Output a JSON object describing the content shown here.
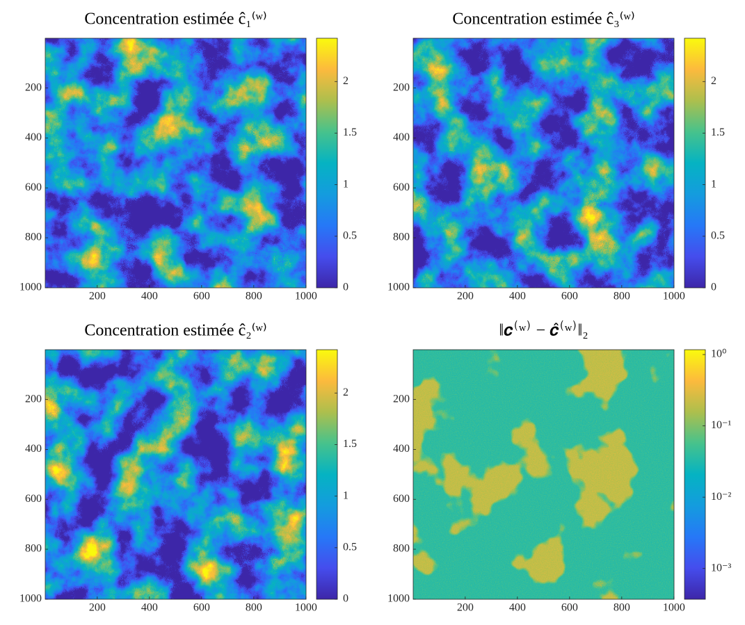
{
  "chart_data": [
    {
      "type": "image",
      "title": "Concentration estimée ĉ₁⁽ʷ⁾",
      "xlim": [
        0.5,
        1000.5
      ],
      "ylim": [
        0.5,
        1000.5
      ],
      "ydir": "reverse",
      "xticks": [
        200,
        400,
        600,
        800,
        1000
      ],
      "yticks": [
        200,
        400,
        600,
        800,
        1000
      ],
      "colormap": "parula",
      "colorbar_scale": "linear",
      "clim": [
        0,
        2.42
      ],
      "cticks": [
        0,
        0.5,
        1,
        1.5,
        2
      ]
    },
    {
      "type": "image",
      "title": "Concentration estimée ĉ₃⁽ʷ⁾",
      "xlim": [
        0.5,
        1000.5
      ],
      "ylim": [
        0.5,
        1000.5
      ],
      "ydir": "reverse",
      "xticks": [
        200,
        400,
        600,
        800,
        1000
      ],
      "yticks": [
        200,
        400,
        600,
        800,
        1000
      ],
      "colormap": "parula",
      "colorbar_scale": "linear",
      "clim": [
        0,
        2.42
      ],
      "cticks": [
        0,
        0.5,
        1,
        1.5,
        2
      ]
    },
    {
      "type": "image",
      "title": "Concentration estimée ĉ₂⁽ʷ⁾",
      "xlim": [
        0.5,
        1000.5
      ],
      "ylim": [
        0.5,
        1000.5
      ],
      "ydir": "reverse",
      "xticks": [
        200,
        400,
        600,
        800,
        1000
      ],
      "yticks": [
        200,
        400,
        600,
        800,
        1000
      ],
      "colormap": "parula",
      "colorbar_scale": "linear",
      "clim": [
        0,
        2.42
      ],
      "cticks": [
        0,
        0.5,
        1,
        1.5,
        2
      ]
    },
    {
      "type": "image",
      "title": "‖𝒄⁽ʷ⁾ − 𝒄̂⁽ʷ⁾‖₂",
      "xlim": [
        0.5,
        1000.5
      ],
      "ylim": [
        0.5,
        1000.5
      ],
      "ydir": "reverse",
      "xticks": [
        200,
        400,
        600,
        800,
        1000
      ],
      "yticks": [
        200,
        400,
        600,
        800,
        1000
      ],
      "colormap": "parula",
      "colorbar_scale": "log",
      "clim": [
        0.00037,
        1.17
      ],
      "cticks": [
        {
          "value": 0.001,
          "label": "10⁻³"
        },
        {
          "value": 0.01,
          "label": "10⁻²"
        },
        {
          "value": 0.1,
          "label": "10⁻¹"
        },
        {
          "value": 1,
          "label": "10⁰"
        }
      ]
    }
  ]
}
